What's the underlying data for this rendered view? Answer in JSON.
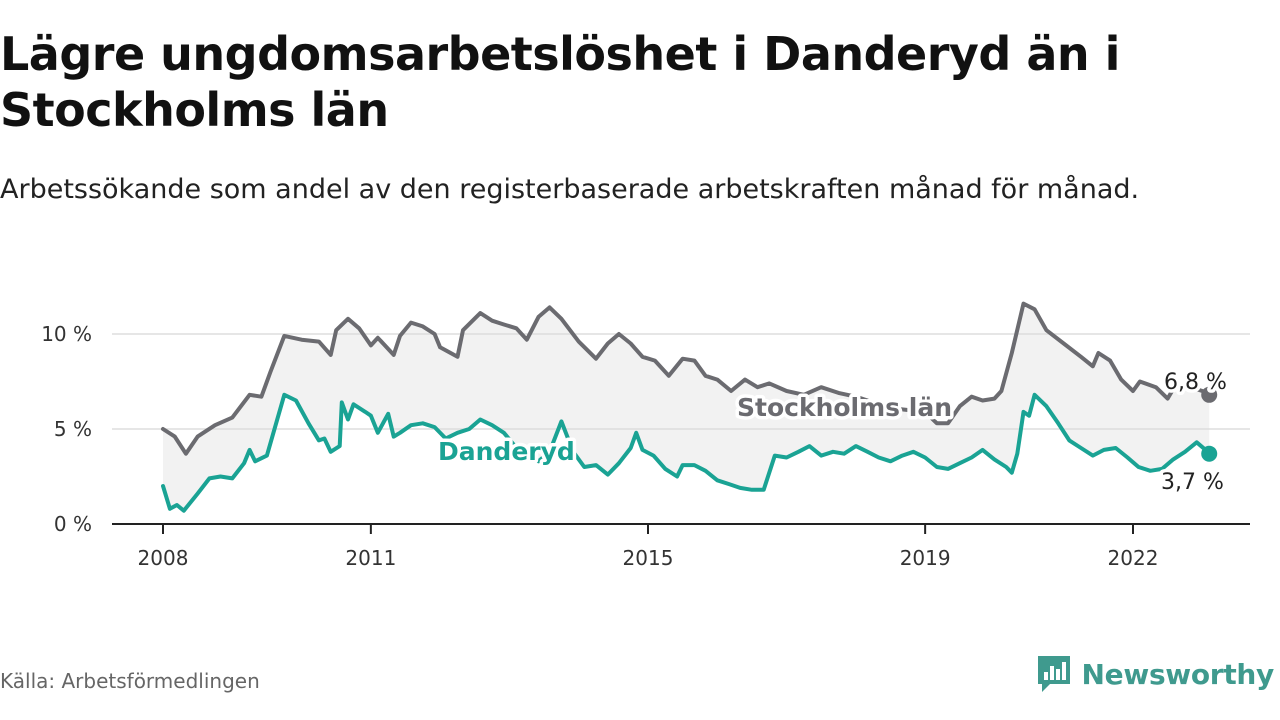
{
  "header": {
    "title": "Lägre ungdomsarbetslöshet i Danderyd än i Stockholms län",
    "subtitle": "Arbetssökande som andel av den registerbaserade arbetskraften månad för månad."
  },
  "footer": {
    "source": "Källa: Arbetsförmedlingen",
    "brand": "Newsworthy"
  },
  "colors": {
    "stockholm": "#6b6b70",
    "danderyd": "#1aa394",
    "band": "#f2f2f2",
    "grid": "#dddddd",
    "axis": "#222222",
    "brand": "#3f9a8e"
  },
  "chart_data": {
    "type": "line",
    "title": "Lägre ungdomsarbetslöshet i Danderyd än i Stockholms län",
    "ylim": [
      0,
      12
    ],
    "y_ticks": [
      {
        "value": 0,
        "label": "0 %"
      },
      {
        "value": 5,
        "label": "5 %"
      },
      {
        "value": 10,
        "label": "10 %"
      }
    ],
    "x_ticks": [
      {
        "value": 2008,
        "label": "2008"
      },
      {
        "value": 2011,
        "label": "2011"
      },
      {
        "value": 2015,
        "label": "2015"
      },
      {
        "value": 2019,
        "label": "2019"
      },
      {
        "value": 2022,
        "label": "2022"
      }
    ],
    "xlim": [
      2007.7,
      2023.7
    ],
    "grid": true,
    "series": [
      {
        "name": "Stockholms län",
        "label": "Stockholms län",
        "end_label": "6,8 %",
        "points": [
          [
            2008.0,
            5.0
          ],
          [
            2008.17,
            4.6
          ],
          [
            2008.33,
            3.7
          ],
          [
            2008.5,
            4.6
          ],
          [
            2008.75,
            5.2
          ],
          [
            2009.0,
            5.6
          ],
          [
            2009.25,
            6.8
          ],
          [
            2009.42,
            6.7
          ],
          [
            2009.55,
            8.0
          ],
          [
            2009.75,
            9.9
          ],
          [
            2010.0,
            9.7
          ],
          [
            2010.25,
            9.6
          ],
          [
            2010.42,
            8.9
          ],
          [
            2010.5,
            10.2
          ],
          [
            2010.67,
            10.8
          ],
          [
            2010.83,
            10.3
          ],
          [
            2011.0,
            9.4
          ],
          [
            2011.1,
            9.8
          ],
          [
            2011.33,
            8.9
          ],
          [
            2011.42,
            9.9
          ],
          [
            2011.58,
            10.6
          ],
          [
            2011.75,
            10.4
          ],
          [
            2011.92,
            10.0
          ],
          [
            2012.0,
            9.3
          ],
          [
            2012.25,
            8.8
          ],
          [
            2012.33,
            10.2
          ],
          [
            2012.58,
            11.1
          ],
          [
            2012.75,
            10.7
          ],
          [
            2012.92,
            10.5
          ],
          [
            2013.1,
            10.3
          ],
          [
            2013.25,
            9.7
          ],
          [
            2013.42,
            10.9
          ],
          [
            2013.58,
            11.4
          ],
          [
            2013.75,
            10.8
          ],
          [
            2014.0,
            9.6
          ],
          [
            2014.25,
            8.7
          ],
          [
            2014.42,
            9.5
          ],
          [
            2014.58,
            10.0
          ],
          [
            2014.75,
            9.5
          ],
          [
            2014.92,
            8.8
          ],
          [
            2015.1,
            8.6
          ],
          [
            2015.3,
            7.8
          ],
          [
            2015.5,
            8.7
          ],
          [
            2015.67,
            8.6
          ],
          [
            2015.83,
            7.8
          ],
          [
            2016.0,
            7.6
          ],
          [
            2016.2,
            7.0
          ],
          [
            2016.4,
            7.6
          ],
          [
            2016.58,
            7.2
          ],
          [
            2016.75,
            7.4
          ],
          [
            2017.0,
            7.0
          ],
          [
            2017.25,
            6.8
          ],
          [
            2017.5,
            7.2
          ],
          [
            2017.75,
            6.9
          ],
          [
            2018.0,
            6.7
          ],
          [
            2018.25,
            6.4
          ],
          [
            2018.5,
            6.1
          ],
          [
            2018.75,
            6.0
          ],
          [
            2019.0,
            5.9
          ],
          [
            2019.17,
            5.3
          ],
          [
            2019.33,
            5.3
          ],
          [
            2019.5,
            6.2
          ],
          [
            2019.67,
            6.7
          ],
          [
            2019.83,
            6.5
          ],
          [
            2020.0,
            6.6
          ],
          [
            2020.1,
            7.0
          ],
          [
            2020.25,
            9.0
          ],
          [
            2020.42,
            11.6
          ],
          [
            2020.58,
            11.3
          ],
          [
            2020.75,
            10.2
          ],
          [
            2021.0,
            9.5
          ],
          [
            2021.25,
            8.8
          ],
          [
            2021.42,
            8.3
          ],
          [
            2021.5,
            9.0
          ],
          [
            2021.67,
            8.6
          ],
          [
            2021.83,
            7.6
          ],
          [
            2022.0,
            7.0
          ],
          [
            2022.1,
            7.5
          ],
          [
            2022.33,
            7.2
          ],
          [
            2022.5,
            6.6
          ],
          [
            2022.58,
            7.1
          ],
          [
            2022.83,
            7.2
          ],
          [
            2023.0,
            7.0
          ],
          [
            2023.1,
            6.8
          ]
        ]
      },
      {
        "name": "Danderyd",
        "label": "Danderyd",
        "end_label": "3,7 %",
        "points": [
          [
            2008.0,
            2.0
          ],
          [
            2008.1,
            0.8
          ],
          [
            2008.2,
            1.0
          ],
          [
            2008.3,
            0.7
          ],
          [
            2008.5,
            1.6
          ],
          [
            2008.67,
            2.4
          ],
          [
            2008.83,
            2.5
          ],
          [
            2009.0,
            2.4
          ],
          [
            2009.17,
            3.2
          ],
          [
            2009.25,
            3.9
          ],
          [
            2009.33,
            3.3
          ],
          [
            2009.5,
            3.6
          ],
          [
            2009.75,
            6.8
          ],
          [
            2009.92,
            6.5
          ],
          [
            2010.1,
            5.3
          ],
          [
            2010.25,
            4.4
          ],
          [
            2010.33,
            4.5
          ],
          [
            2010.42,
            3.8
          ],
          [
            2010.55,
            4.1
          ],
          [
            2010.58,
            6.4
          ],
          [
            2010.67,
            5.5
          ],
          [
            2010.75,
            6.3
          ],
          [
            2010.92,
            5.9
          ],
          [
            2011.0,
            5.7
          ],
          [
            2011.1,
            4.8
          ],
          [
            2011.25,
            5.8
          ],
          [
            2011.33,
            4.6
          ],
          [
            2011.42,
            4.8
          ],
          [
            2011.58,
            5.2
          ],
          [
            2011.75,
            5.3
          ],
          [
            2011.92,
            5.1
          ],
          [
            2012.08,
            4.5
          ],
          [
            2012.25,
            4.8
          ],
          [
            2012.42,
            5.0
          ],
          [
            2012.58,
            5.5
          ],
          [
            2012.75,
            5.2
          ],
          [
            2012.92,
            4.8
          ],
          [
            2013.08,
            4.1
          ],
          [
            2013.25,
            3.6
          ],
          [
            2013.42,
            3.3
          ],
          [
            2013.58,
            3.8
          ],
          [
            2013.75,
            5.4
          ],
          [
            2013.92,
            3.8
          ],
          [
            2014.08,
            3.0
          ],
          [
            2014.25,
            3.1
          ],
          [
            2014.42,
            2.6
          ],
          [
            2014.58,
            3.2
          ],
          [
            2014.75,
            4.0
          ],
          [
            2014.83,
            4.8
          ],
          [
            2014.92,
            3.9
          ],
          [
            2015.08,
            3.6
          ],
          [
            2015.25,
            2.9
          ],
          [
            2015.42,
            2.5
          ],
          [
            2015.5,
            3.1
          ],
          [
            2015.67,
            3.1
          ],
          [
            2015.83,
            2.8
          ],
          [
            2016.0,
            2.3
          ],
          [
            2016.17,
            2.1
          ],
          [
            2016.33,
            1.9
          ],
          [
            2016.5,
            1.8
          ],
          [
            2016.67,
            1.8
          ],
          [
            2016.83,
            3.6
          ],
          [
            2017.0,
            3.5
          ],
          [
            2017.17,
            3.8
          ],
          [
            2017.33,
            4.1
          ],
          [
            2017.5,
            3.6
          ],
          [
            2017.67,
            3.8
          ],
          [
            2017.83,
            3.7
          ],
          [
            2018.0,
            4.1
          ],
          [
            2018.17,
            3.8
          ],
          [
            2018.33,
            3.5
          ],
          [
            2018.5,
            3.3
          ],
          [
            2018.67,
            3.6
          ],
          [
            2018.83,
            3.8
          ],
          [
            2019.0,
            3.5
          ],
          [
            2019.17,
            3.0
          ],
          [
            2019.33,
            2.9
          ],
          [
            2019.5,
            3.2
          ],
          [
            2019.67,
            3.5
          ],
          [
            2019.83,
            3.9
          ],
          [
            2020.0,
            3.4
          ],
          [
            2020.17,
            3.0
          ],
          [
            2020.25,
            2.7
          ],
          [
            2020.33,
            3.7
          ],
          [
            2020.42,
            5.9
          ],
          [
            2020.5,
            5.7
          ],
          [
            2020.58,
            6.8
          ],
          [
            2020.75,
            6.2
          ],
          [
            2020.92,
            5.3
          ],
          [
            2021.08,
            4.4
          ],
          [
            2021.25,
            4.0
          ],
          [
            2021.42,
            3.6
          ],
          [
            2021.58,
            3.9
          ],
          [
            2021.75,
            4.0
          ],
          [
            2021.92,
            3.5
          ],
          [
            2022.08,
            3.0
          ],
          [
            2022.25,
            2.8
          ],
          [
            2022.42,
            2.9
          ],
          [
            2022.58,
            3.4
          ],
          [
            2022.75,
            3.8
          ],
          [
            2022.92,
            4.3
          ],
          [
            2023.08,
            3.8
          ],
          [
            2023.1,
            3.7
          ]
        ]
      }
    ]
  }
}
